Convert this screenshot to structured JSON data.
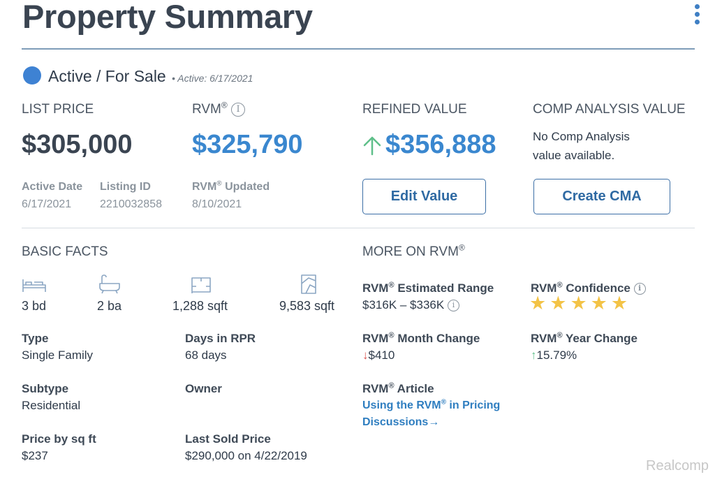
{
  "header": {
    "title": "Property Summary",
    "menu_icon": "kebab-vertical-icon"
  },
  "status": {
    "text": "Active / For Sale",
    "sub": "• Active: 6/17/2021",
    "color": "#3e82d3"
  },
  "pricing": {
    "list_price_label": "LIST PRICE",
    "list_price": "$305,000",
    "rvm_label": "RVM",
    "rvm_sup": "®",
    "rvm_value": "$325,790",
    "refined_label": "REFINED VALUE",
    "refined_value": "$356,888",
    "comp_label": "COMP ANALYSIS VALUE",
    "comp_line1": "No Comp Analysis",
    "comp_line2": "value available.",
    "active_date_label": "Active Date",
    "active_date": "6/17/2021",
    "listing_id_label": "Listing ID",
    "listing_id": "2210032858",
    "rvm_updated_label": " Updated",
    "rvm_updated": "8/10/2021",
    "edit_value_button": "Edit Value",
    "create_cma_button": "Create CMA",
    "accent_color": "#3a87cf",
    "up_color": "#5fbf8a"
  },
  "basic_facts": {
    "heading": "BASIC FACTS",
    "beds": "3 bd",
    "baths": "2 ba",
    "sqft": "1,288 sqft",
    "lot_sqft": "9,583 sqft",
    "type_label": "Type",
    "type": "Single Family",
    "days_label": "Days in RPR",
    "days": "68 days",
    "subtype_label": "Subtype",
    "subtype": "Residential",
    "owner_label": "Owner",
    "price_sqft_label": "Price by sq ft",
    "price_sqft": "$237",
    "last_sold_label": "Last Sold Price",
    "last_sold": "$290,000",
    "last_sold_on": " on 4/22/2019"
  },
  "more_rvm": {
    "heading": "MORE ON RVM",
    "range_label": " Estimated Range",
    "range": "$316K – $336K",
    "confidence_label": " Confidence",
    "confidence_stars": 5,
    "month_label": " Month Change",
    "month_change": "$410",
    "year_label": " Year Change",
    "year_change": "15.79%",
    "article_label": " Article",
    "article_link_1": "Using the RVM",
    "article_link_2": " in Pricing",
    "article_link_3": "Discussions",
    "down_color": "#d9534f"
  },
  "watermark": "Realcomp"
}
